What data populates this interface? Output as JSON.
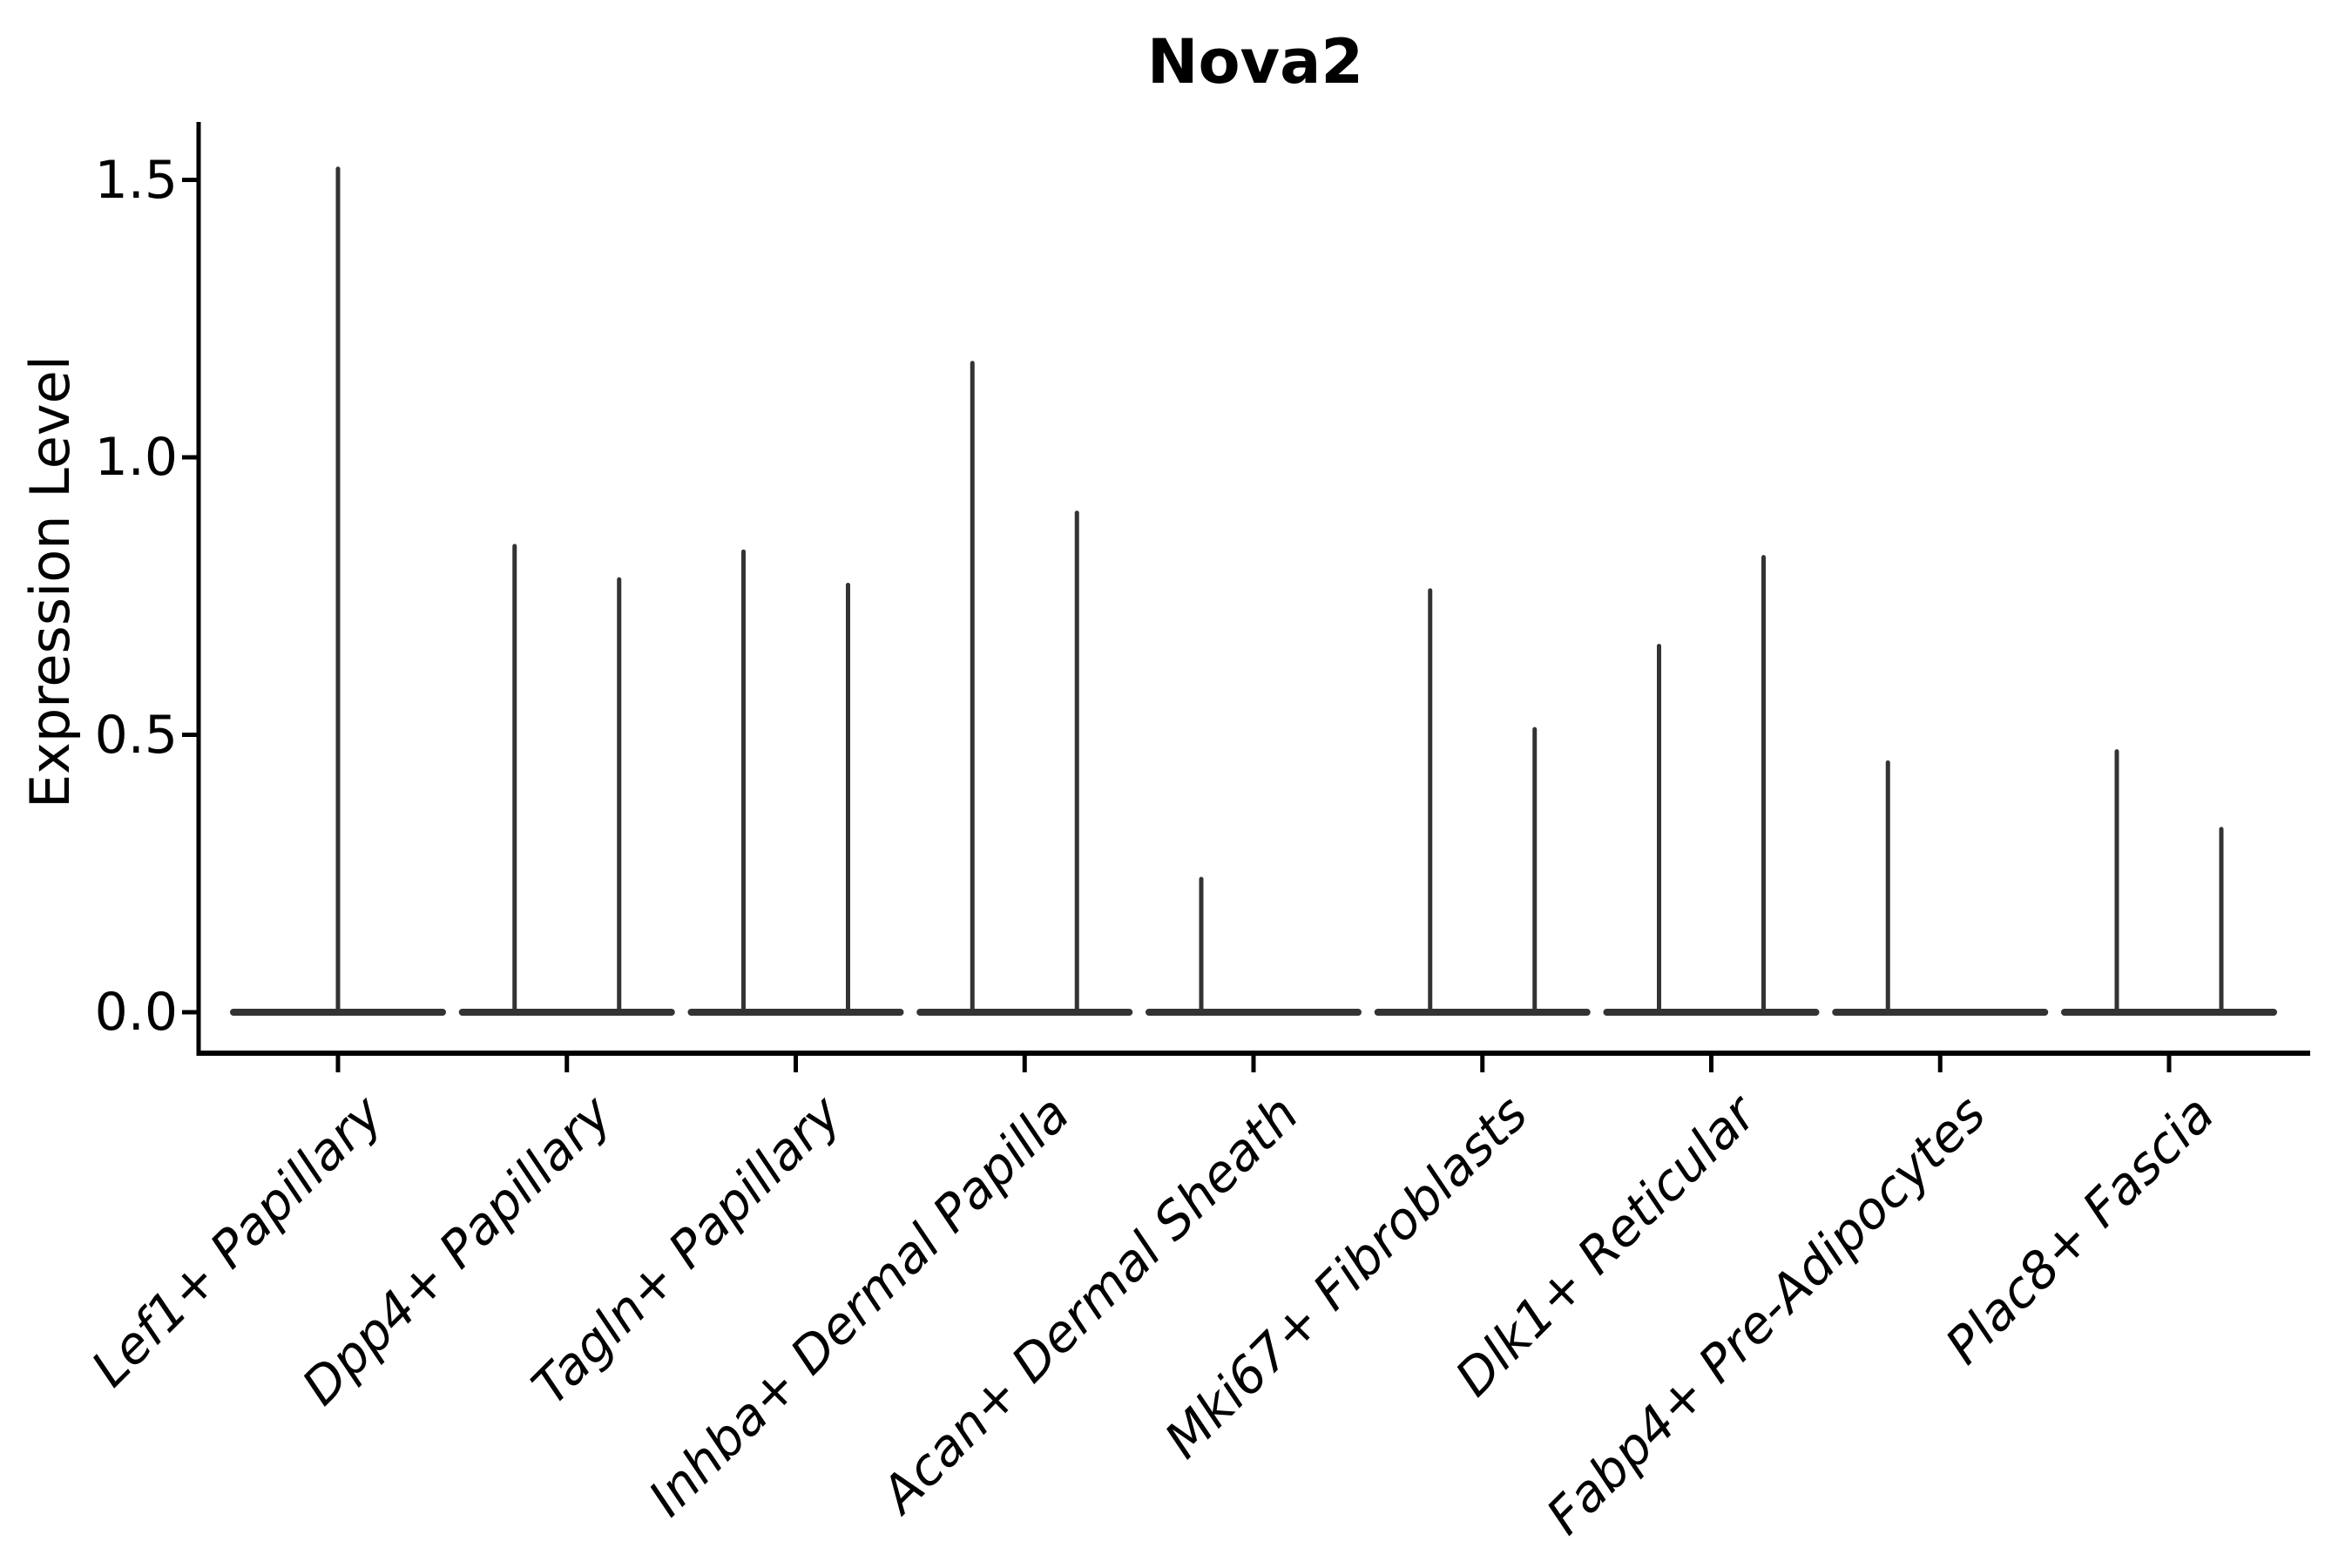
{
  "title": "Nova2",
  "y_axis": {
    "label": "Expression Level",
    "tick_values": [
      0.0,
      0.5,
      1.0,
      1.5
    ]
  },
  "chart_data": {
    "type": "violin",
    "title": "Nova2",
    "ylabel": "Expression Level",
    "ylim": [
      0,
      1.6
    ],
    "yticks": [
      0.0,
      0.5,
      1.0,
      1.5
    ],
    "grid": false,
    "legend": "none",
    "description": "Violin plot of Nova2 expression; each cell-type violin collapses to a flat baseline at 0 with thin spikes rising to the maximum expression values",
    "categories": [
      "Lef1+ Papillary",
      "Dpp4+ Papillary",
      "Tagln+ Papillary",
      "Inhba+ Dermal Papilla",
      "Acan+ Dermal Sheath",
      "Mki67+ Fibroblasts",
      "Dlk1+ Reticular",
      "Fabp4+ Pre-Adipocytes",
      "Plac8+ Fascia"
    ],
    "violins": [
      {
        "category": "Lef1+ Papillary",
        "spikes": [
          {
            "offset": "center",
            "max_expression": 1.52
          }
        ]
      },
      {
        "category": "Dpp4+ Papillary",
        "spikes": [
          {
            "offset": "left",
            "max_expression": 0.84
          },
          {
            "offset": "right",
            "max_expression": 0.78
          }
        ]
      },
      {
        "category": "Tagln+ Papillary",
        "spikes": [
          {
            "offset": "left",
            "max_expression": 0.83
          },
          {
            "offset": "right",
            "max_expression": 0.77
          }
        ]
      },
      {
        "category": "Inhba+ Dermal Papilla",
        "spikes": [
          {
            "offset": "left",
            "max_expression": 1.17
          },
          {
            "offset": "right",
            "max_expression": 0.9
          }
        ]
      },
      {
        "category": "Acan+ Dermal Sheath",
        "spikes": [
          {
            "offset": "left",
            "max_expression": 0.24
          }
        ]
      },
      {
        "category": "Mki67+ Fibroblasts",
        "spikes": [
          {
            "offset": "left",
            "max_expression": 0.76
          },
          {
            "offset": "right",
            "max_expression": 0.51
          }
        ]
      },
      {
        "category": "Dlk1+ Reticular",
        "spikes": [
          {
            "offset": "left",
            "max_expression": 0.66
          },
          {
            "offset": "right",
            "max_expression": 0.82
          }
        ]
      },
      {
        "category": "Fabp4+ Pre-Adipocytes",
        "spikes": [
          {
            "offset": "left",
            "max_expression": 0.45
          }
        ]
      },
      {
        "category": "Plac8+ Fascia",
        "spikes": [
          {
            "offset": "left",
            "max_expression": 0.47
          },
          {
            "offset": "right",
            "max_expression": 0.33
          }
        ]
      }
    ],
    "colors": {
      "violin_stroke": "#333333",
      "axis": "#000000",
      "text": "#000000",
      "background": "#ffffff"
    }
  }
}
